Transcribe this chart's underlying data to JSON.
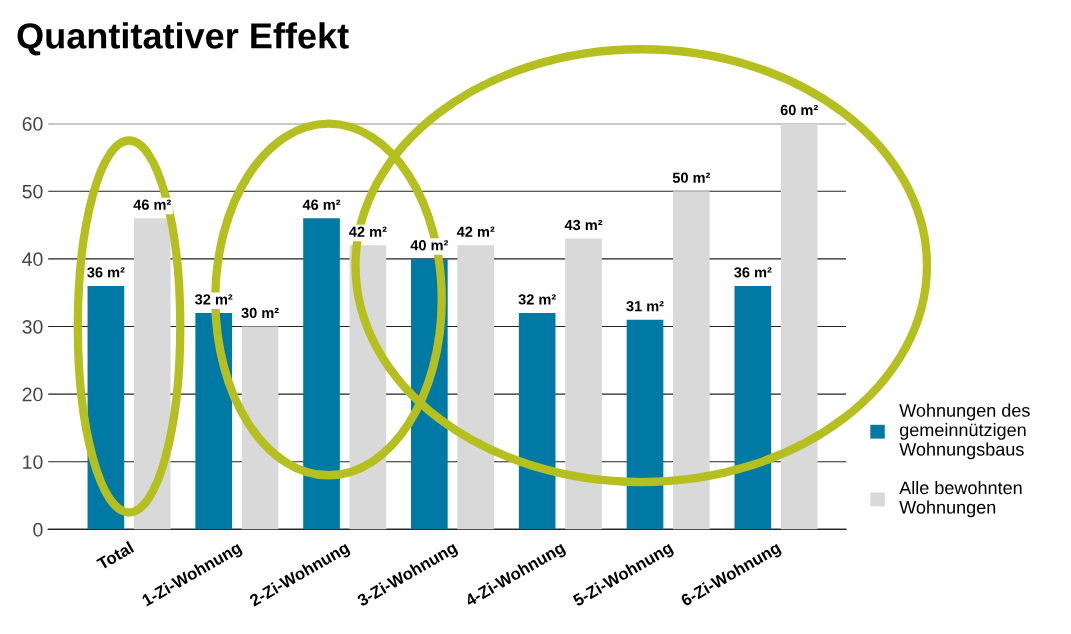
{
  "chart_data": {
    "type": "bar",
    "title": "Quantitativer Effekt",
    "categories": [
      "Total",
      "1-Zi-Wohnung",
      "2-Zi-Wohnung",
      "3-Zi-Wohnung",
      "4-Zi-Wohnung",
      "5-Zi-Wohnung",
      "6-Zi-Wohnung"
    ],
    "series": [
      {
        "name": "Wohnungen des\ngemeinnützigen\nWohnungsbaus",
        "color": "#007aa5",
        "values": [
          36,
          32,
          46,
          40,
          32,
          31,
          36
        ],
        "value_labels": [
          "36 m²",
          "32 m²",
          "46 m²",
          "40 m²",
          "32 m²",
          "31 m²",
          "36 m²"
        ]
      },
      {
        "name": "Alle bewohnten\nWohnungen",
        "color": "#d9d9d9",
        "values": [
          46,
          30,
          42,
          42,
          43,
          50,
          60
        ],
        "value_labels": [
          "46 m²",
          "30 m²",
          "42 m²",
          "42 m²",
          "43 m²",
          "50 m²",
          "60 m²"
        ]
      }
    ],
    "ylim": [
      0,
      60
    ],
    "yticks": [
      0,
      10,
      20,
      30,
      40,
      50,
      60
    ],
    "grid": "y",
    "legend": "right"
  }
}
